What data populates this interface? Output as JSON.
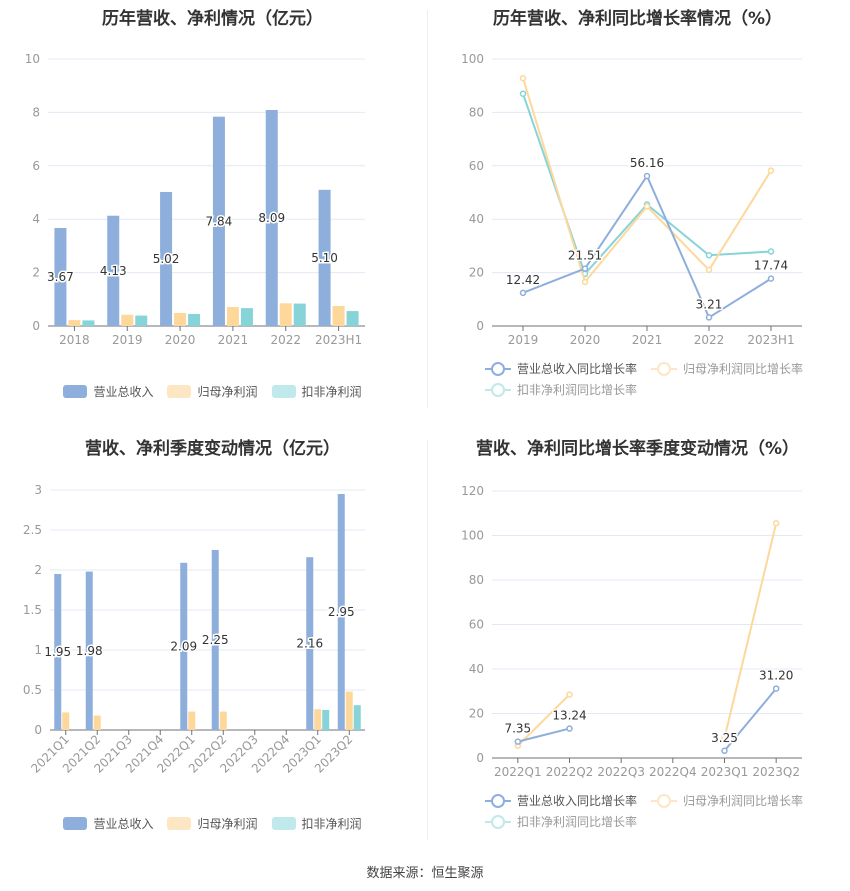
{
  "colors": {
    "revenue": "#8eaedb",
    "parent": "#fdd89a",
    "kf": "#86d4d8",
    "revenue_legend": "#8eaedb",
    "parent_legend": "#fde6c4",
    "kf_legend": "#bfe9ea"
  },
  "chart_data": [
    {
      "type": "bar",
      "title": "历年营收、净利情况（亿元）",
      "categories": [
        "2018",
        "2019",
        "2020",
        "2021",
        "2022",
        "2023H1"
      ],
      "yticks": [
        "0",
        "2",
        "4",
        "6",
        "8",
        "10"
      ],
      "ylim": [
        0,
        10
      ],
      "series": [
        {
          "name": "营业总收入",
          "values": [
            3.67,
            4.13,
            5.02,
            7.84,
            8.09,
            5.1
          ],
          "labels": [
            "3.67",
            "4.13",
            "5.02",
            "7.84",
            "8.09",
            "5.10"
          ]
        },
        {
          "name": "归母净利润",
          "values": [
            0.22,
            0.42,
            0.49,
            0.71,
            0.85,
            0.75
          ]
        },
        {
          "name": "扣非净利润",
          "values": [
            0.21,
            0.39,
            0.45,
            0.67,
            0.84,
            0.56
          ]
        }
      ],
      "legend": "bottom"
    },
    {
      "type": "line",
      "title": "历年营收、净利同比增长率情况（%）",
      "categories": [
        "2019",
        "2020",
        "2021",
        "2022",
        "2023H1"
      ],
      "yticks": [
        "0",
        "20",
        "40",
        "60",
        "80",
        "100"
      ],
      "ylim": [
        0,
        100
      ],
      "series": [
        {
          "name": "营业总收入同比增长率",
          "values": [
            12.42,
            21.51,
            56.16,
            3.21,
            17.74
          ],
          "labels": [
            "12.42",
            "21.51",
            "56.16",
            "3.21",
            "17.74"
          ]
        },
        {
          "name": "归母净利润同比增长率",
          "values": [
            92.8,
            16.5,
            44.8,
            21.0,
            58.2
          ]
        },
        {
          "name": "扣非净利润同比增长率",
          "values": [
            87.0,
            19.5,
            45.5,
            26.5,
            27.9
          ]
        }
      ],
      "legend": "bottom"
    },
    {
      "type": "bar",
      "title": "营收、净利季度变动情况（亿元）",
      "categories": [
        "2021Q1",
        "2021Q2",
        "2021Q3",
        "2021Q4",
        "2022Q1",
        "2022Q2",
        "2022Q3",
        "2022Q4",
        "2023Q1",
        "2023Q2"
      ],
      "yticks": [
        "0",
        "0.5",
        "1",
        "1.5",
        "2",
        "2.5",
        "3"
      ],
      "ylim": [
        0,
        3
      ],
      "series": [
        {
          "name": "营业总收入",
          "values": [
            1.95,
            1.98,
            null,
            null,
            2.09,
            2.25,
            null,
            null,
            2.16,
            2.95
          ],
          "labels": [
            "1.95",
            "1.98",
            null,
            null,
            "2.09",
            "2.25",
            null,
            null,
            "2.16",
            "2.95"
          ]
        },
        {
          "name": "归母净利润",
          "values": [
            0.22,
            0.18,
            null,
            null,
            0.23,
            0.23,
            null,
            null,
            0.26,
            0.48
          ]
        },
        {
          "name": "扣非净利润",
          "values": [
            null,
            null,
            null,
            null,
            null,
            null,
            null,
            null,
            0.25,
            0.31
          ]
        }
      ],
      "legend": "bottom"
    },
    {
      "type": "line",
      "title": "营收、净利同比增长率季度变动情况（%）",
      "categories": [
        "2022Q1",
        "2022Q2",
        "2022Q3",
        "2022Q4",
        "2023Q1",
        "2023Q2"
      ],
      "yticks": [
        "0",
        "20",
        "40",
        "60",
        "80",
        "100",
        "120"
      ],
      "ylim": [
        0,
        120
      ],
      "series": [
        {
          "name": "营业总收入同比增长率",
          "values": [
            7.35,
            13.24,
            null,
            null,
            3.25,
            31.2
          ],
          "labels": [
            "7.35",
            "13.24",
            null,
            null,
            "3.25",
            "31.20"
          ]
        },
        {
          "name": "归母净利润同比增长率",
          "values": [
            5.5,
            28.5,
            null,
            null,
            9.0,
            105.5
          ]
        },
        {
          "name": "扣非净利润同比增长率",
          "values": [
            null,
            null,
            null,
            null,
            null,
            null
          ]
        }
      ],
      "legend": "bottom"
    }
  ],
  "source": "数据来源：恒生聚源"
}
